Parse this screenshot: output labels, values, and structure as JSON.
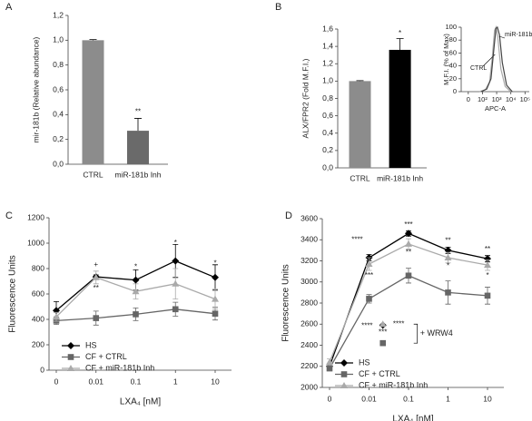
{
  "chart_data": [
    {
      "panel": "A",
      "type": "bar",
      "ylabel": "mir-181b (Relative abundance)",
      "categories": [
        "CTRL",
        "miR-181b Inh"
      ],
      "values": [
        1.0,
        0.27
      ],
      "errors": [
        0.005,
        0.1
      ],
      "colors": [
        "#8c8c8c",
        "#6a6a6a"
      ],
      "ylim": [
        0,
        1.2
      ],
      "yticks": [
        {
          "value": 0,
          "label": "0,0"
        },
        {
          "value": 0.2,
          "label": "0,2"
        },
        {
          "value": 0.4,
          "label": "0,4"
        },
        {
          "value": 0.6,
          "label": "0,6"
        },
        {
          "value": 0.8,
          "label": "0,8"
        },
        {
          "value": 1.0,
          "label": "1,0"
        },
        {
          "value": 1.2,
          "label": "1,2"
        }
      ],
      "annotations": [
        {
          "text": "**",
          "at": [
            1,
            0.42
          ]
        }
      ]
    },
    {
      "panel": "B",
      "type": "bar",
      "ylabel": "ALX/FPR2 (Fold M.F.I.)",
      "categories": [
        "CTRL",
        "miR-181b Inh"
      ],
      "values": [
        1.0,
        1.36
      ],
      "errors": [
        0.005,
        0.13
      ],
      "colors": [
        "#8c8c8c",
        "#000000"
      ],
      "ylim": [
        0,
        1.6
      ],
      "yticks": [
        {
          "value": 0,
          "label": "0,0"
        },
        {
          "value": 0.2,
          "label": "0,2"
        },
        {
          "value": 0.4,
          "label": "0,4"
        },
        {
          "value": 0.6,
          "label": "0,6"
        },
        {
          "value": 0.8,
          "label": "0,8"
        },
        {
          "value": 1.0,
          "label": "1,0"
        },
        {
          "value": 1.2,
          "label": "1,2"
        },
        {
          "value": 1.4,
          "label": "1,4"
        },
        {
          "value": 1.6,
          "label": "1,6"
        }
      ],
      "annotations": [
        {
          "text": "*",
          "at": [
            1,
            1.55
          ]
        }
      ]
    },
    {
      "type": "line",
      "ylabel": "M.F.I. (% of Max)",
      "xlabel": "APC-A",
      "ylim": [
        0,
        100
      ],
      "yticks": [
        0,
        20,
        40,
        60,
        80,
        100
      ],
      "xlim": [
        0.5,
        5.3
      ],
      "xticks": [
        {
          "value": 1,
          "label": "0"
        },
        {
          "value": 2,
          "label": "10²"
        },
        {
          "value": 3,
          "label": "10³"
        },
        {
          "value": 4,
          "label": "10⁴"
        },
        {
          "value": 5,
          "label": "10⁵"
        }
      ],
      "series": [
        {
          "name": "CTRL",
          "color": "#aaaaaa",
          "x": [
            1.8,
            2.2,
            2.5,
            2.7,
            2.85,
            2.95,
            3.1,
            3.3,
            3.6,
            4.0
          ],
          "values": [
            0,
            3,
            15,
            55,
            95,
            100,
            80,
            35,
            8,
            0
          ]
        },
        {
          "name": "miR-181b Inh",
          "color": "#444444",
          "x": [
            1.9,
            2.3,
            2.6,
            2.8,
            2.95,
            3.05,
            3.2,
            3.4,
            3.7,
            4.1
          ],
          "values": [
            0,
            4,
            20,
            65,
            98,
            100,
            88,
            45,
            10,
            0
          ]
        }
      ]
    },
    {
      "panel": "C",
      "type": "line",
      "ylabel": "Fluorescence Units",
      "xlabel": "LXA₄ [nM]",
      "categories": [
        "0",
        "0.01",
        "0.1",
        "1",
        "10"
      ],
      "ylim": [
        0,
        1200
      ],
      "yticks": [
        0,
        200,
        400,
        600,
        800,
        1000,
        1200
      ],
      "legend": "lower left",
      "series": [
        {
          "name": "HS",
          "color": "#000000",
          "marker": "diamond",
          "values": [
            470,
            735,
            710,
            860,
            730
          ],
          "errors": [
            70,
            15,
            80,
            130,
            100
          ]
        },
        {
          "name": "CF + CTRL",
          "color": "#666666",
          "marker": "square",
          "values": [
            390,
            410,
            440,
            480,
            445
          ],
          "errors": [
            30,
            55,
            50,
            55,
            50
          ]
        },
        {
          "name": "CF + miR-181b Inh",
          "color": "#aaaaaa",
          "marker": "triangle",
          "values": [
            420,
            730,
            620,
            680,
            560
          ],
          "errors": [
            35,
            50,
            60,
            120,
            80
          ]
        }
      ],
      "annotations": [
        {
          "text": "+",
          "at": [
            1,
            830
          ]
        },
        {
          "text": "**",
          "at": [
            1,
            645
          ]
        },
        {
          "text": "*",
          "at": [
            2,
            810
          ]
        },
        {
          "text": "*",
          "at": [
            3,
            1000
          ]
        },
        {
          "text": "*",
          "at": [
            4,
            840
          ]
        }
      ]
    },
    {
      "panel": "D",
      "type": "line",
      "ylabel": "Fluorescence Units",
      "xlabel": "LXA₄ [nM]",
      "categories": [
        "0",
        "0.01",
        "0.1",
        "1",
        "10"
      ],
      "ylim": [
        2000,
        3600
      ],
      "yticks": [
        2000,
        2200,
        2400,
        2600,
        2800,
        3000,
        3200,
        3400,
        3600
      ],
      "legend": "lower left",
      "series": [
        {
          "name": "HS",
          "color": "#000000",
          "marker": "diamond",
          "values": [
            2200,
            3230,
            3460,
            3300,
            3220
          ],
          "errors": [
            20,
            30,
            25,
            30,
            30
          ]
        },
        {
          "name": "CF + CTRL",
          "color": "#666666",
          "marker": "square",
          "values": [
            2180,
            2840,
            3060,
            2900,
            2870
          ],
          "errors": [
            20,
            40,
            70,
            110,
            80
          ]
        },
        {
          "name": "CF + miR-181b Inh",
          "color": "#aaaaaa",
          "marker": "triangle",
          "values": [
            2240,
            3170,
            3360,
            3230,
            3160
          ],
          "errors": [
            30,
            60,
            50,
            50,
            50
          ]
        }
      ],
      "wrw4": {
        "label": "+ WRW4",
        "at": 1.35,
        "values": [
          2590,
          2420,
          2600
        ]
      },
      "annotations": [
        {
          "text": "****",
          "at": [
            0.7,
            3400
          ]
        },
        {
          "text": "***",
          "at": [
            2,
            3540
          ]
        },
        {
          "text": "**",
          "at": [
            3,
            3390
          ]
        },
        {
          "text": "**",
          "at": [
            4,
            3310
          ]
        },
        {
          "text": "***",
          "at": [
            1,
            3060
          ]
        },
        {
          "text": "**",
          "at": [
            2,
            3280
          ]
        },
        {
          "text": "*",
          "at": [
            3,
            3150
          ]
        },
        {
          "text": "*",
          "at": [
            4,
            3060
          ]
        },
        {
          "text": "****",
          "at": [
            0.95,
            2580
          ]
        },
        {
          "text": "****",
          "at": [
            1.75,
            2600
          ]
        },
        {
          "text": "***",
          "at": [
            1.35,
            2520
          ]
        }
      ]
    }
  ]
}
